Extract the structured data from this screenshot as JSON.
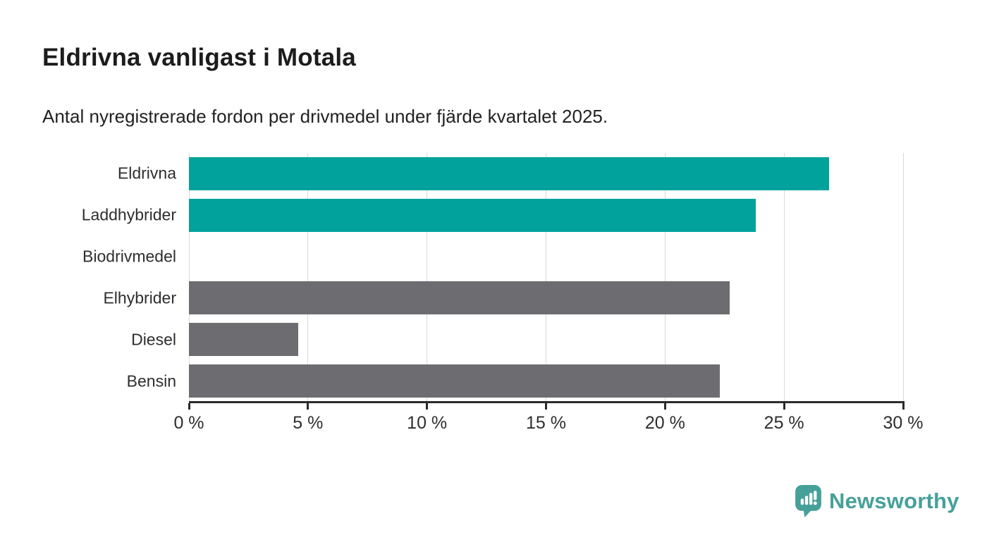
{
  "header": {
    "title": "Eldrivna vanligast i Motala",
    "subtitle": "Antal nyregistrerade fordon per drivmedel under fjärde kvartalet 2025."
  },
  "chart_data": {
    "type": "bar",
    "orientation": "horizontal",
    "title": "Eldrivna vanligast i Motala",
    "subtitle": "Antal nyregistrerade fordon per drivmedel under fjärde kvartalet 2025.",
    "categories": [
      "Eldrivna",
      "Laddhybrider",
      "Biodrivmedel",
      "Elhybrider",
      "Diesel",
      "Bensin"
    ],
    "values": [
      26.9,
      23.8,
      0,
      22.7,
      4.6,
      22.3
    ],
    "unit": "%",
    "bar_colors": [
      "#00a29b",
      "#00a29b",
      "#00a29b",
      "#6c6c71",
      "#6c6c71",
      "#6c6c71"
    ],
    "xlim": [
      0,
      30
    ],
    "x_ticks": [
      0,
      5,
      10,
      15,
      20,
      25,
      30
    ],
    "x_tick_labels": [
      "0 %",
      "5 %",
      "10 %",
      "15 %",
      "20 %",
      "25 %",
      "30 %"
    ],
    "xlabel": "",
    "ylabel": "",
    "grid": true,
    "legend": false
  },
  "footer": {
    "brand": "Newsworthy"
  },
  "colors": {
    "teal_bar": "#00a29b",
    "gray_bar": "#6c6c71",
    "gridline": "#d9d9d9",
    "axis": "#2b2b2b",
    "logo_teal": "#46a09a",
    "text_dark": "#2e2e2e"
  }
}
